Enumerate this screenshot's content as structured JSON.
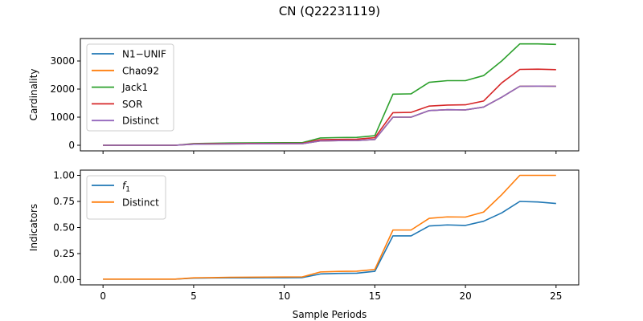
{
  "title": "CN (Q22231119)",
  "chart_data": [
    {
      "type": "line",
      "ylabel": "Cardinality",
      "xlabel": "",
      "xlim": [
        -1.25,
        26.25
      ],
      "ylim": [
        -200,
        3800
      ],
      "xticks": [
        0,
        5,
        10,
        15,
        20,
        25
      ],
      "xtick_labels": [],
      "yticks": [
        0,
        1000,
        2000,
        3000
      ],
      "ytick_labels": [
        "0",
        "1000",
        "2000",
        "3000"
      ],
      "legend_position": "upper-left",
      "x": [
        0,
        1,
        2,
        3,
        4,
        5,
        6,
        7,
        8,
        9,
        10,
        11,
        12,
        13,
        14,
        15,
        16,
        17,
        18,
        19,
        20,
        21,
        22,
        23,
        24,
        25
      ],
      "series": [
        {
          "name": "N1−UNIF",
          "color": "#1f77b4",
          "values": [
            0,
            0,
            0,
            0,
            0,
            38,
            43,
            48,
            50,
            52,
            54,
            56,
            155,
            165,
            170,
            205,
            1000,
            1000,
            1235,
            1265,
            1260,
            1360,
            1710,
            2100,
            2105,
            2100
          ]
        },
        {
          "name": "Chao92",
          "color": "#ff7f0e",
          "values": [
            0,
            0,
            0,
            0,
            0,
            38,
            43,
            48,
            50,
            52,
            54,
            56,
            155,
            165,
            170,
            205,
            1000,
            1000,
            1235,
            1265,
            1260,
            1360,
            1710,
            2100,
            2105,
            2100
          ]
        },
        {
          "name": "Jack1",
          "color": "#2ca02c",
          "values": [
            0,
            0,
            0,
            0,
            0,
            60,
            70,
            80,
            85,
            88,
            90,
            92,
            260,
            275,
            280,
            340,
            1820,
            1830,
            2240,
            2300,
            2300,
            2480,
            3000,
            3610,
            3610,
            3590
          ]
        },
        {
          "name": "SOR",
          "color": "#d62728",
          "values": [
            0,
            0,
            0,
            0,
            0,
            50,
            55,
            60,
            62,
            64,
            66,
            68,
            200,
            210,
            215,
            270,
            1160,
            1170,
            1395,
            1430,
            1440,
            1575,
            2220,
            2700,
            2710,
            2690
          ]
        },
        {
          "name": "Distinct",
          "color": "#9467bd",
          "values": [
            0,
            0,
            0,
            0,
            0,
            38,
            43,
            48,
            50,
            52,
            54,
            56,
            155,
            165,
            170,
            205,
            1000,
            1000,
            1235,
            1265,
            1260,
            1360,
            1710,
            2100,
            2105,
            2100
          ]
        }
      ]
    },
    {
      "type": "line",
      "ylabel": "Indicators",
      "xlabel": "Sample Periods",
      "xlim": [
        -1.25,
        26.25
      ],
      "ylim": [
        -0.05,
        1.05
      ],
      "xticks": [
        0,
        5,
        10,
        15,
        20,
        25
      ],
      "xtick_labels": [
        "0",
        "5",
        "10",
        "15",
        "20",
        "25"
      ],
      "yticks": [
        0.0,
        0.25,
        0.5,
        0.75,
        1.0
      ],
      "ytick_labels": [
        "0.00",
        "0.25",
        "0.50",
        "0.75",
        "1.00"
      ],
      "legend_position": "upper-left",
      "x": [
        0,
        1,
        2,
        3,
        4,
        5,
        6,
        7,
        8,
        9,
        10,
        11,
        12,
        13,
        14,
        15,
        16,
        17,
        18,
        19,
        20,
        21,
        22,
        23,
        24,
        25
      ],
      "series": [
        {
          "name": "f",
          "subscript": "1",
          "color": "#1f77b4",
          "values": [
            0.005,
            0.005,
            0.005,
            0.005,
            0.005,
            0.015,
            0.017,
            0.018,
            0.018,
            0.019,
            0.019,
            0.02,
            0.055,
            0.06,
            0.062,
            0.08,
            0.42,
            0.42,
            0.515,
            0.525,
            0.52,
            0.56,
            0.64,
            0.75,
            0.745,
            0.73
          ]
        },
        {
          "name": "Distinct",
          "color": "#ff7f0e",
          "values": [
            0.005,
            0.005,
            0.005,
            0.005,
            0.005,
            0.018,
            0.02,
            0.023,
            0.024,
            0.025,
            0.026,
            0.027,
            0.074,
            0.079,
            0.081,
            0.098,
            0.476,
            0.476,
            0.588,
            0.602,
            0.6,
            0.648,
            0.814,
            1.0,
            1.0,
            1.0
          ]
        }
      ]
    }
  ]
}
